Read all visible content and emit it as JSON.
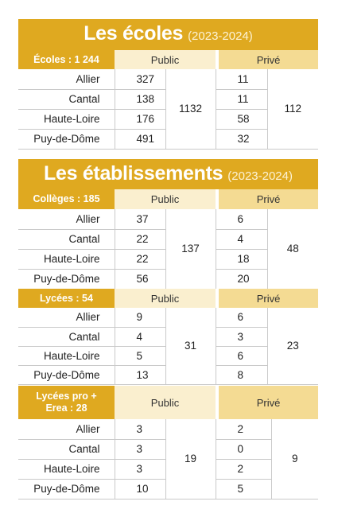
{
  "ecoles": {
    "title": "Les écoles",
    "year": "(2023-2024)",
    "category": "Écoles : 1 244",
    "public_label": "Public",
    "prive_label": "Privé",
    "public_total": "1132",
    "prive_total": "112",
    "rows": [
      {
        "name": "Allier",
        "public": "327",
        "prive": "11"
      },
      {
        "name": "Cantal",
        "public": "138",
        "prive": "11"
      },
      {
        "name": "Haute-Loire",
        "public": "176",
        "prive": "58"
      },
      {
        "name": "Puy-de-Dôme",
        "public": "491",
        "prive": "32"
      }
    ]
  },
  "etablissements": {
    "title": "Les établissements",
    "year": "(2023-2024)",
    "colleges": {
      "category": "Collèges : 185",
      "public_label": "Public",
      "prive_label": "Privé",
      "public_total": "137",
      "prive_total": "48",
      "rows": [
        {
          "name": "Allier",
          "public": "37",
          "prive": "6"
        },
        {
          "name": "Cantal",
          "public": "22",
          "prive": "4"
        },
        {
          "name": "Haute-Loire",
          "public": "22",
          "prive": "18"
        },
        {
          "name": "Puy-de-Dôme",
          "public": "56",
          "prive": "20"
        }
      ]
    },
    "lycees": {
      "category": "Lycées : 54",
      "public_label": "Public",
      "prive_label": "Privé",
      "public_total": "31",
      "prive_total": "23",
      "rows": [
        {
          "name": "Allier",
          "public": "9",
          "prive": "6"
        },
        {
          "name": "Cantal",
          "public": "4",
          "prive": "3"
        },
        {
          "name": "Haute-Loire",
          "public": "5",
          "prive": "6"
        },
        {
          "name": "Puy-de-Dôme",
          "public": "13",
          "prive": "8"
        }
      ]
    },
    "lycees_pro": {
      "category_line1": "Lycées pro +",
      "category_line2": "Erea : 28",
      "public_label": "Public",
      "prive_label": "Privé",
      "public_total": "19",
      "prive_total": "9",
      "rows": [
        {
          "name": "Allier",
          "public": "3",
          "prive": "2"
        },
        {
          "name": "Cantal",
          "public": "3",
          "prive": "0"
        },
        {
          "name": "Haute-Loire",
          "public": "3",
          "prive": "2"
        },
        {
          "name": "Puy-de-Dôme",
          "public": "10",
          "prive": "5"
        }
      ]
    }
  },
  "colors": {
    "banner_gold": "#dfa920",
    "public_header": "#faefcf",
    "prive_header": "#f4db93"
  }
}
